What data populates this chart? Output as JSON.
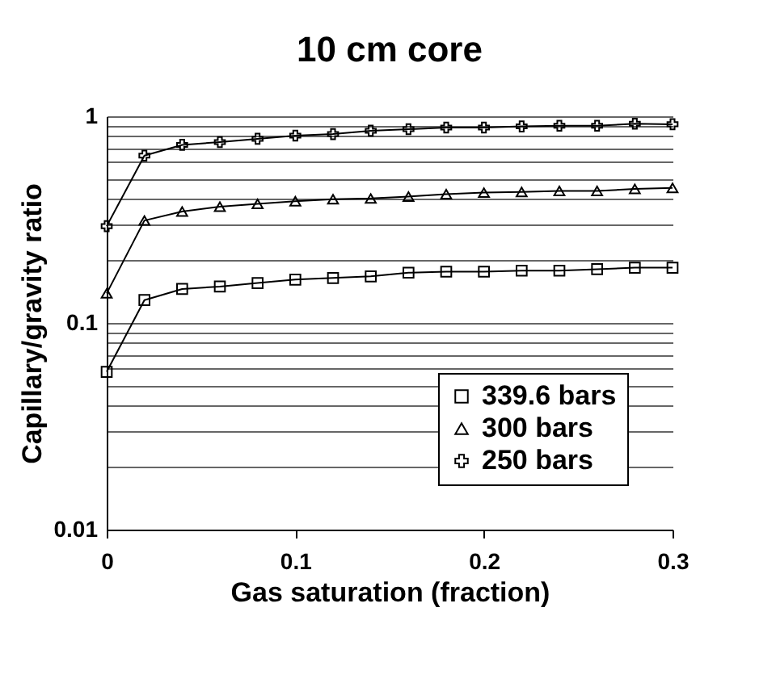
{
  "chart_data": {
    "type": "line",
    "title": "10 cm core",
    "xlabel": "Gas saturation (fraction)",
    "ylabel": "Capillary/gravity ratio",
    "x": [
      0,
      0.02,
      0.04,
      0.06,
      0.08,
      0.1,
      0.12,
      0.14,
      0.16,
      0.18,
      0.2,
      0.22,
      0.24,
      0.26,
      0.28,
      0.3
    ],
    "series": [
      {
        "name": "339.6 bars",
        "color": "#000000",
        "marker": "square",
        "values": [
          0.058,
          0.129,
          0.146,
          0.15,
          0.156,
          0.162,
          0.165,
          0.168,
          0.175,
          0.177,
          0.177,
          0.179,
          0.179,
          0.182,
          0.185,
          0.185
        ]
      },
      {
        "name": "300 bars",
        "color": "#000000",
        "marker": "triangle",
        "values": [
          0.139,
          0.313,
          0.346,
          0.365,
          0.377,
          0.388,
          0.397,
          0.4,
          0.409,
          0.42,
          0.427,
          0.43,
          0.435,
          0.435,
          0.445,
          0.45
        ]
      },
      {
        "name": "250 bars",
        "color": "#000000",
        "marker": "cross",
        "values": [
          0.294,
          0.645,
          0.727,
          0.75,
          0.778,
          0.806,
          0.82,
          0.851,
          0.866,
          0.882,
          0.882,
          0.893,
          0.9,
          0.9,
          0.92,
          0.915
        ]
      }
    ],
    "xlim": [
      0,
      0.3
    ],
    "xticks": [
      0,
      0.1,
      0.2,
      0.3
    ],
    "ylim": [
      0.01,
      1
    ],
    "log": "y",
    "yticks": [
      0.01,
      {
        "value": 0.02,
        "label": null
      },
      {
        "value": 0.03,
        "label": null
      },
      {
        "value": 0.04,
        "label": null
      },
      {
        "value": 0.05,
        "label": null
      },
      {
        "value": 0.06,
        "label": null
      },
      {
        "value": 0.07,
        "label": null
      },
      {
        "value": 0.08,
        "label": null
      },
      {
        "value": 0.09,
        "label": null
      },
      0.1,
      {
        "value": 0.2,
        "label": null
      },
      {
        "value": 0.3,
        "label": null
      },
      {
        "value": 0.4,
        "label": null
      },
      {
        "value": 0.5,
        "label": null
      },
      {
        "value": 0.6,
        "label": null
      },
      {
        "value": 0.7,
        "label": null
      },
      {
        "value": 0.8,
        "label": null
      },
      {
        "value": 0.9,
        "label": null
      },
      1
    ],
    "grid": "y",
    "legend": "bottom right",
    "line_style": "solid"
  }
}
